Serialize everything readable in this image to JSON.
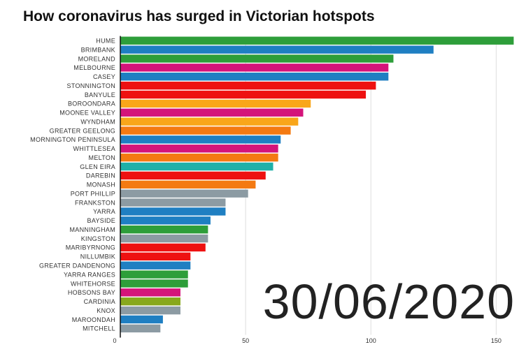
{
  "title": "How coronavirus has surged in Victorian hotspots",
  "date": "30/06/2020",
  "chart_data": {
    "type": "bar",
    "orientation": "horizontal",
    "xlim": [
      0,
      158
    ],
    "xticks": [
      0,
      50,
      100,
      150
    ],
    "grid": true,
    "categories": [
      "HUME",
      "BRIMBANK",
      "MORELAND",
      "MELBOURNE",
      "CASEY",
      "STONNINGTON",
      "BANYULE",
      "BOROONDARA",
      "MOONEE VALLEY",
      "WYNDHAM",
      "GREATER GEELONG",
      "MORNINGTON PENINSULA",
      "WHITTLESEA",
      "MELTON",
      "GLEN EIRA",
      "DAREBIN",
      "MONASH",
      "PORT PHILLIP",
      "FRANKSTON",
      "YARRA",
      "BAYSIDE",
      "MANNINGHAM",
      "KINGSTON",
      "MARIBYRNONG",
      "NILLUMBIK",
      "GREATER DANDENONG",
      "YARRA RANGES",
      "WHITEHORSE",
      "HOBSONS BAY",
      "CARDINIA",
      "KNOX",
      "MAROONDAH",
      "MITCHELL"
    ],
    "values": [
      157,
      125,
      109,
      107,
      107,
      102,
      98,
      76,
      73,
      71,
      68,
      64,
      63,
      63,
      61,
      58,
      54,
      51,
      42,
      42,
      36,
      35,
      35,
      34,
      28,
      28,
      27,
      27,
      24,
      24,
      24,
      17,
      16
    ],
    "colors": [
      "#2e9e3a",
      "#1f7fc2",
      "#2e9e3a",
      "#d4147a",
      "#1f7fc2",
      "#ee1111",
      "#ee1111",
      "#f9a61a",
      "#d4147a",
      "#f9a61a",
      "#f47a12",
      "#1f7fc2",
      "#d4147a",
      "#f47a12",
      "#1fb0a8",
      "#ee1111",
      "#f47a12",
      "#8c9ba3",
      "#8c9ba3",
      "#1f7fc2",
      "#1f7fc2",
      "#2e9e3a",
      "#8c9ba3",
      "#ee1111",
      "#ee1111",
      "#1f7fc2",
      "#2e9e3a",
      "#2e9e3a",
      "#d4147a",
      "#88a81c",
      "#8c9ba3",
      "#1f7fc2",
      "#8c9ba3"
    ]
  }
}
